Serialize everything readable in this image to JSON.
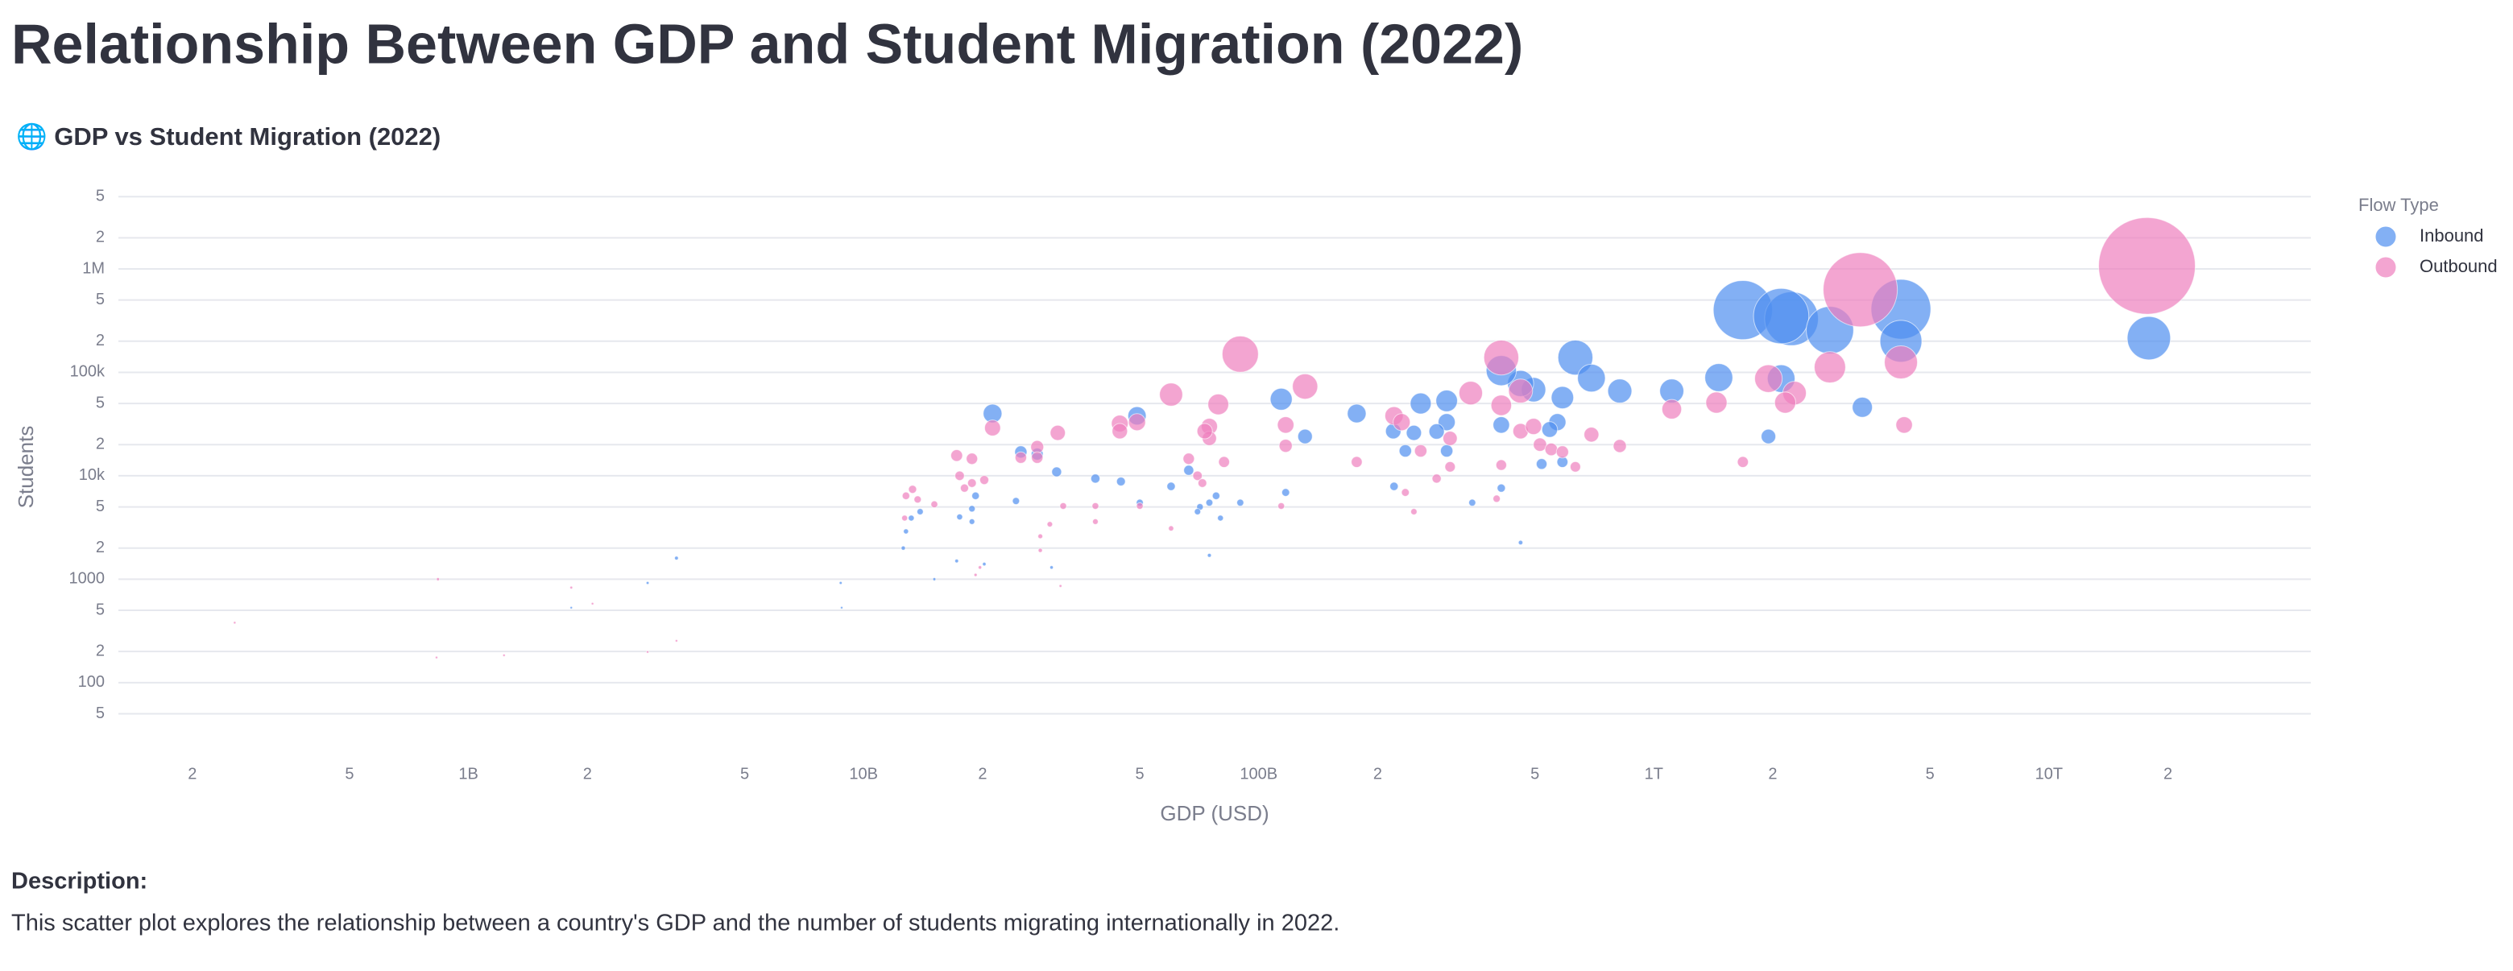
{
  "page": {
    "title": "Relationship Between GDP and Student Migration (2022)",
    "description_heading": "Description:",
    "description": "This scatter plot explores the relationship between a country's GDP and the number of students migrating internationally in 2022."
  },
  "chart_data": {
    "type": "scatter",
    "title": "🌐 GDP vs Student Migration (2022)",
    "xlabel": "GDP (USD)",
    "ylabel": "Students",
    "legend_title": "Flow Type",
    "legend": "right",
    "xscale": "log",
    "yscale": "log",
    "grid": true,
    "bubble_size": true,
    "xlim": [
      130000000,
      46000000000000
    ],
    "ylim": [
      30,
      8000000
    ],
    "xticks": [
      {
        "value": 200000000,
        "label": "2"
      },
      {
        "value": 500000000,
        "label": "5"
      },
      {
        "value": 1000000000,
        "label": "1B"
      },
      {
        "value": 2000000000,
        "label": "2"
      },
      {
        "value": 5000000000,
        "label": "5"
      },
      {
        "value": 10000000000,
        "label": "10B"
      },
      {
        "value": 20000000000,
        "label": "2"
      },
      {
        "value": 50000000000,
        "label": "5"
      },
      {
        "value": 100000000000,
        "label": "100B"
      },
      {
        "value": 200000000000,
        "label": "2"
      },
      {
        "value": 500000000000,
        "label": "5"
      },
      {
        "value": 1000000000000,
        "label": "1T"
      },
      {
        "value": 2000000000000,
        "label": "2"
      },
      {
        "value": 5000000000000,
        "label": "5"
      },
      {
        "value": 10000000000000,
        "label": "10T"
      },
      {
        "value": 20000000000000,
        "label": "2"
      }
    ],
    "yticks": [
      {
        "value": 50,
        "label": "5"
      },
      100,
      {
        "value": 200,
        "label": "2"
      },
      {
        "value": 500,
        "label": "5"
      },
      1000,
      {
        "value": 2000,
        "label": "2"
      },
      {
        "value": 5000,
        "label": "5"
      },
      {
        "value": 10000,
        "label": "10k"
      },
      {
        "value": 20000,
        "label": "2"
      },
      {
        "value": 50000,
        "label": "5"
      },
      {
        "value": 100000,
        "label": "100k"
      },
      {
        "value": 200000,
        "label": "2"
      },
      {
        "value": 500000,
        "label": "5"
      },
      {
        "value": 1000000,
        "label": "1M"
      },
      {
        "value": 2000000,
        "label": "2"
      },
      {
        "value": 5000000,
        "label": "5"
      }
    ],
    "series": [
      {
        "name": "Inbound",
        "color": "#4f8ef0",
        "x": [
          17900000000000,
          4220000000000,
          4220000000000,
          1680000000000,
          2230000000000,
          2100000000000,
          2790000000000,
          3370000000000,
          1950000000000,
          2100000000000,
          1460000000000,
          1110000000000,
          820000000000,
          633000000000,
          695000000000,
          587000000000,
          496000000000,
          460000000000,
          411000000000,
          570000000000,
          545000000000,
          587000000000,
          520000000000,
          411000000000,
          347000000000,
          411000000000,
          460000000000,
          299000000000,
          257000000000,
          299000000000,
          282000000000,
          247000000000,
          219000000000,
          235000000000,
          299000000000,
          220000000000,
          177000000000,
          131000000000,
          114000000000,
          117000000000,
          89800000000,
          80000000000,
          78000000000,
          75000000000,
          71000000000,
          70000000000,
          66500000000,
          60000000000,
          75000000000,
          49200000000,
          44800000000,
          38600000000,
          50000000000,
          30800000000,
          27500000000,
          25000000000,
          21200000000,
          24300000000,
          19200000000,
          18800000000,
          17500000000,
          18800000000,
          13900000000,
          13200000000,
          12600000000,
          12800000000,
          15100000000,
          17200000000,
          20200000000,
          29900000000,
          8750000000,
          3360000000,
          2840000000,
          1820000000,
          8800000000
        ],
        "values": [
          214000,
          408000,
          200000,
          400000,
          330000,
          350000,
          256000,
          46000,
          24000,
          87000,
          89000,
          66000,
          66000,
          139000,
          88000,
          57000,
          68000,
          78000,
          104000,
          33000,
          28000,
          13600,
          13000,
          31000,
          5500,
          7600,
          2260,
          53000,
          50000,
          33000,
          26800,
          26000,
          27000,
          17400,
          17400,
          7900,
          40000,
          24000,
          55000,
          6900,
          5500,
          3900,
          6400,
          5500,
          5000,
          4500,
          11300,
          7900,
          1700,
          38000,
          8800,
          9400,
          5500,
          10900,
          16200,
          17000,
          40000,
          5700,
          6400,
          4800,
          4000,
          3600,
          4500,
          3900,
          2000,
          2900,
          1000,
          1500,
          1400,
          1300,
          920,
          1600,
          920,
          530,
          530
        ]
      },
      {
        "name": "Outbound",
        "color": "#ee7fbe",
        "x": [
          17700000000000,
          3330000000000,
          4220000000000,
          4300000000000,
          2790000000000,
          2270000000000,
          2150000000000,
          1950000000000,
          1440000000000,
          1110000000000,
          1680000000000,
          820000000000,
          695000000000,
          633000000000,
          411000000000,
          411000000000,
          460000000000,
          460000000000,
          496000000000,
          515000000000,
          550000000000,
          587000000000,
          344000000000,
          305000000000,
          305000000000,
          282000000000,
          247000000000,
          220000000000,
          230000000000,
          257000000000,
          235000000000,
          411000000000,
          400000000000,
          177000000000,
          131000000000,
          89800000000,
          117000000000,
          117000000000,
          114000000000,
          79000000000,
          75000000000,
          75000000000,
          73000000000,
          81700000000,
          66500000000,
          70000000000,
          72000000000,
          60000000000,
          60000000000,
          49200000000,
          44500000000,
          44500000000,
          50000000000,
          38600000000,
          38600000000,
          31000000000,
          32000000000,
          29600000000,
          28000000000,
          27500000000,
          25000000000,
          27500000000,
          21200000000,
          20200000000,
          18800000000,
          18800000000,
          18000000000,
          17200000000,
          17500000000,
          13700000000,
          12800000000,
          13300000000,
          12700000000,
          15100000000,
          19700000000,
          31500000000,
          19200000000,
          28000000000,
          256000000,
          837000000,
          830000000,
          1230000000,
          1820000000,
          2060000000,
          2840000000,
          3360000000
        ],
        "values": [
          1070000,
          630000,
          125000,
          31000,
          112000,
          63000,
          51000,
          87000,
          51000,
          44000,
          13600,
          19400,
          25000,
          12200,
          139000,
          48000,
          66000,
          27000,
          30000,
          20000,
          18000,
          17000,
          63000,
          23000,
          12200,
          9400,
          4500,
          38000,
          33000,
          17400,
          6900,
          12700,
          6000,
          13600,
          73000,
          150000,
          31000,
          19500,
          5100,
          49000,
          30000,
          23000,
          27000,
          13600,
          14600,
          10000,
          8500,
          61000,
          3100,
          33000,
          32000,
          27000,
          5100,
          5100,
          3600,
          26000,
          5100,
          3400,
          2600,
          19000,
          15000,
          15000,
          29000,
          9100,
          14600,
          8500,
          7600,
          15700,
          10000,
          5900,
          6400,
          7400,
          3900,
          5300,
          1300,
          860,
          1100,
          1900,
          380,
          1000,
          175,
          184,
          830,
          580,
          198,
          254
        ]
      }
    ]
  }
}
